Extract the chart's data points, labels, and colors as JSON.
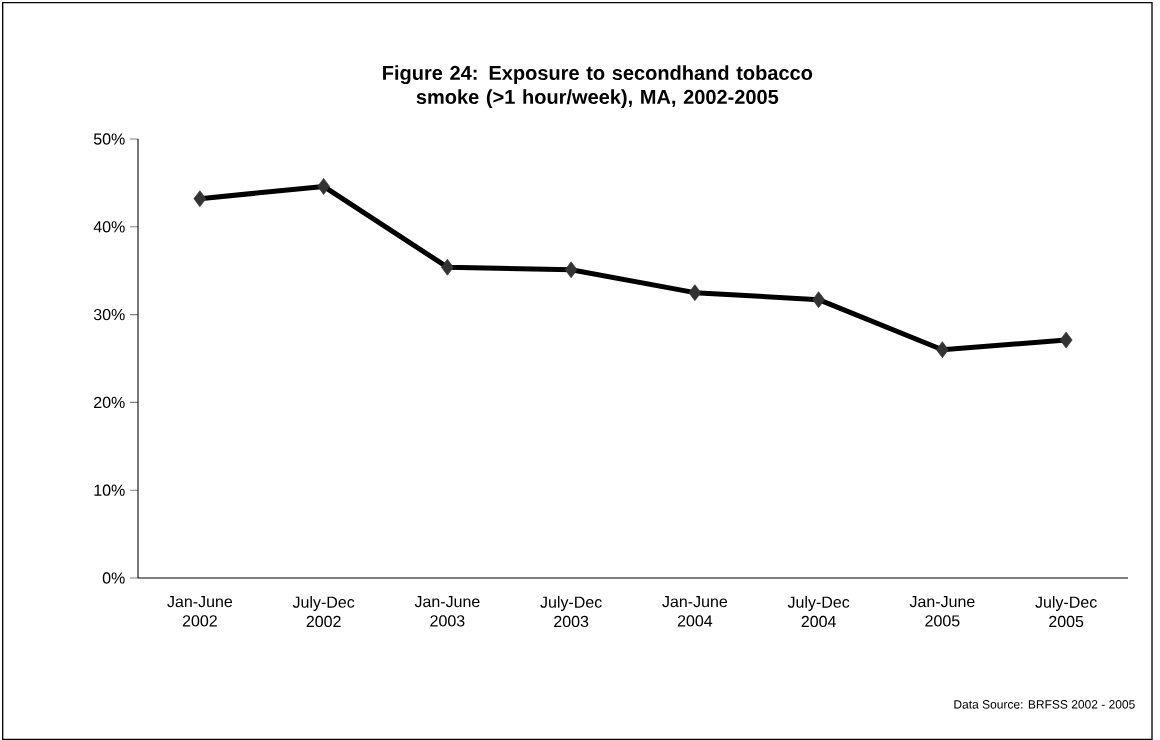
{
  "chart_data": {
    "type": "line",
    "title": "Figure 24:  Exposure to secondhand tobacco smoke (>1 hour/week), MA, 2002-2005",
    "categories": [
      "Jan-June 2002",
      "July-Dec 2002",
      "Jan-June 2003",
      "July-Dec 2003",
      "Jan-June 2004",
      "July-Dec 2004",
      "Jan-June 2005",
      "July-Dec 2005"
    ],
    "series": [
      {
        "color": "#000000",
        "values": [
          43.2,
          44.6,
          35.4,
          35.1,
          32.5,
          31.7,
          26.0,
          27.1
        ]
      }
    ],
    "ylim": [
      0,
      50
    ],
    "yticks": [
      {
        "value": 0,
        "label": "0%"
      },
      {
        "value": 10,
        "label": "10%"
      },
      {
        "value": 20,
        "label": "20%"
      },
      {
        "value": 30,
        "label": "30%"
      },
      {
        "value": 40,
        "label": "40%"
      },
      {
        "value": 50,
        "label": "50%"
      }
    ],
    "grid": false,
    "marker": "diamond",
    "line_style": "solid",
    "annotations": [
      "Data Source: BRFSS 2002 - 2005"
    ]
  }
}
